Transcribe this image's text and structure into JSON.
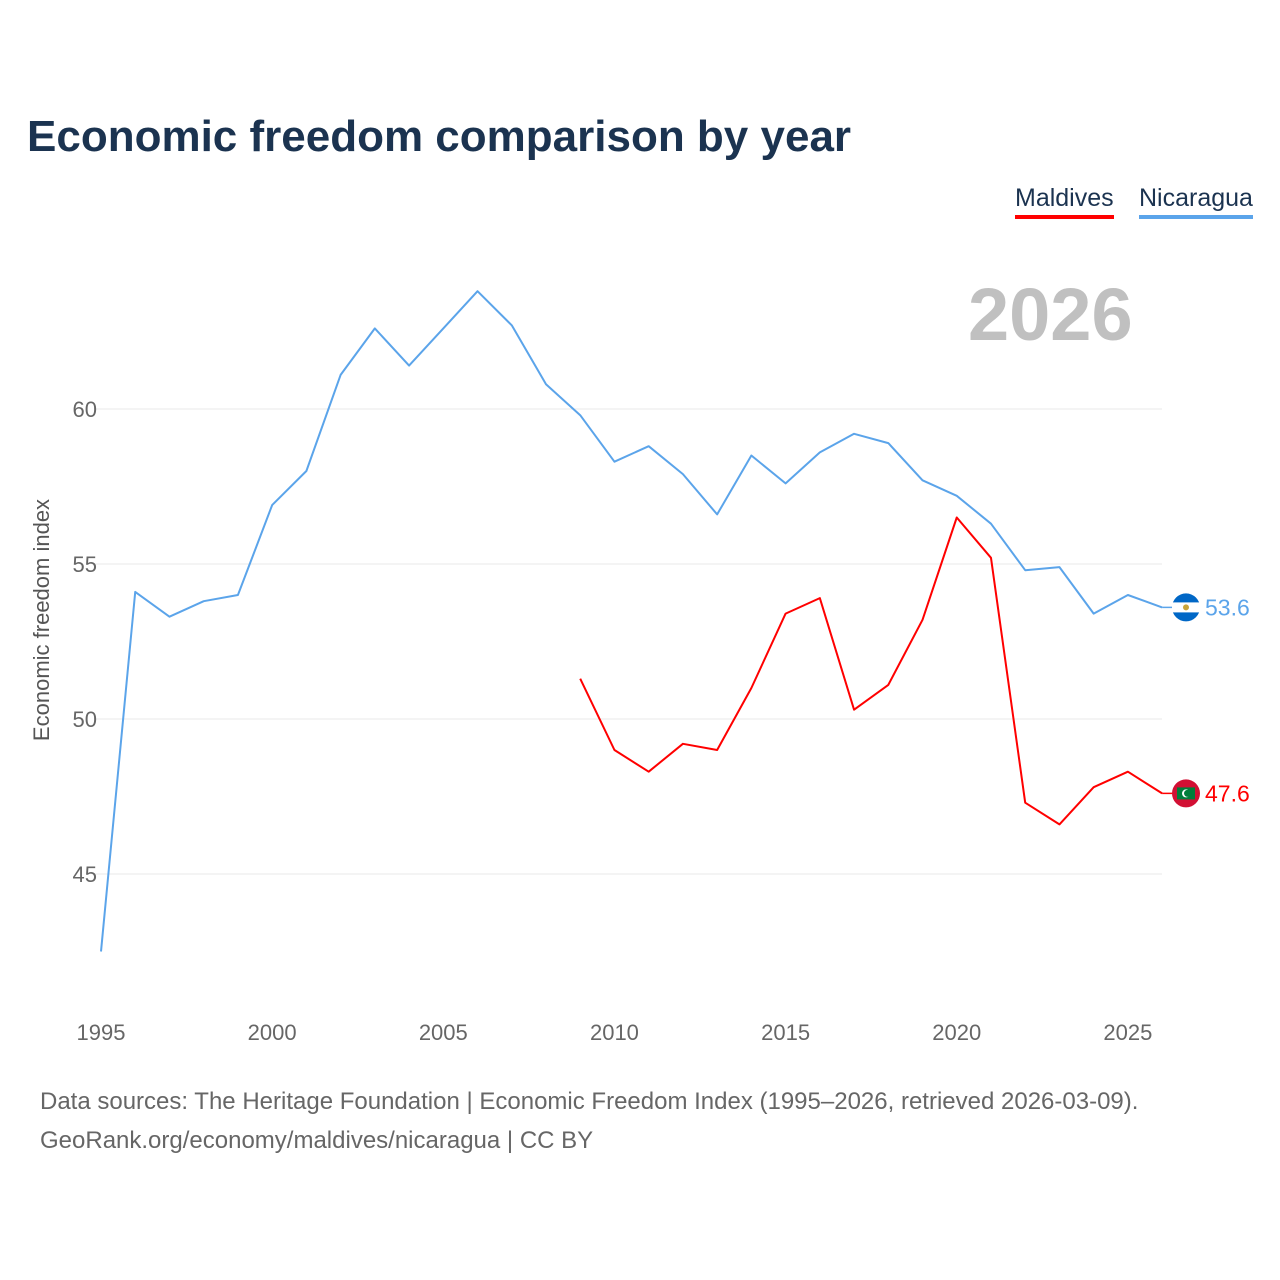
{
  "chart_data": {
    "type": "line",
    "title": "Economic freedom comparison by year",
    "ylabel": "Economic freedom index",
    "xlabel": "",
    "current_year_label": "2026",
    "xlim": [
      1995,
      2026
    ],
    "ylim": [
      41.5,
      65
    ],
    "x_ticks": [
      "1995",
      "2000",
      "2005",
      "2010",
      "2015",
      "2020",
      "2025"
    ],
    "y_ticks": [
      "45",
      "50",
      "55",
      "60"
    ],
    "grid": true,
    "legend": {
      "placement": "top-right",
      "entries": [
        "Maldives",
        "Nicaragua"
      ]
    },
    "series": [
      {
        "name": "Maldives",
        "color": "#ff0000",
        "end_label": "47.6",
        "flag": "maldives-flag",
        "x": [
          2009,
          2010,
          2011,
          2012,
          2013,
          2014,
          2015,
          2016,
          2017,
          2018,
          2019,
          2020,
          2021,
          2022,
          2023,
          2024,
          2025,
          2026
        ],
        "values": [
          51.3,
          49.0,
          48.3,
          49.2,
          49.0,
          51.0,
          53.4,
          53.9,
          50.3,
          51.1,
          53.2,
          56.5,
          55.2,
          47.3,
          46.6,
          47.8,
          48.3,
          47.6
        ]
      },
      {
        "name": "Nicaragua",
        "color": "#5ba4ea",
        "end_label": "53.6",
        "flag": "nicaragua-flag",
        "x": [
          1995,
          1996,
          1997,
          1998,
          1999,
          2000,
          2001,
          2002,
          2003,
          2004,
          2005,
          2006,
          2007,
          2008,
          2009,
          2010,
          2011,
          2012,
          2013,
          2014,
          2015,
          2016,
          2017,
          2018,
          2019,
          2020,
          2021,
          2022,
          2023,
          2024,
          2025,
          2026
        ],
        "values": [
          42.5,
          54.1,
          53.3,
          53.8,
          54.0,
          56.9,
          58.0,
          61.1,
          62.6,
          61.4,
          62.6,
          63.8,
          62.7,
          60.8,
          59.8,
          58.3,
          58.8,
          57.9,
          56.6,
          58.5,
          57.6,
          58.6,
          59.2,
          58.9,
          57.7,
          57.2,
          56.3,
          54.8,
          54.9,
          53.4,
          54.0,
          53.6
        ]
      }
    ]
  },
  "footer": {
    "line1": "Data sources: The Heritage Foundation | Economic Freedom Index (1995–2026, retrieved 2026-03-09).",
    "line2": "GeoRank.org/economy/maldives/nicaragua | CC BY"
  }
}
